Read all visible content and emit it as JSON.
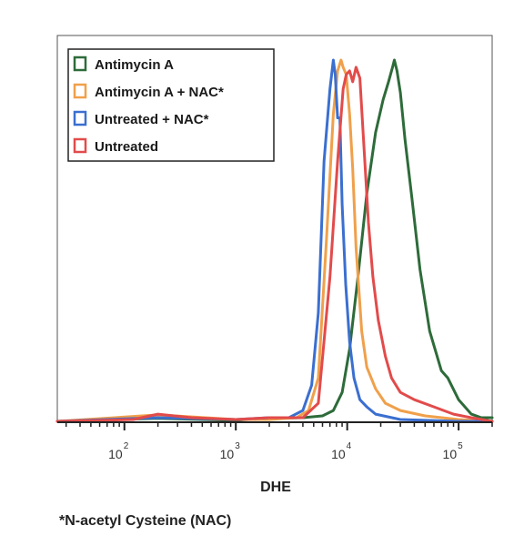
{
  "chart_data": {
    "type": "line",
    "title": "",
    "xlabel": "DHE",
    "ylabel": "",
    "x_scale": "log",
    "xlim": [
      25,
      200000
    ],
    "ylim": [
      0,
      100
    ],
    "x_ticks": [
      {
        "base": "10",
        "exp": "2",
        "value": 100
      },
      {
        "base": "10",
        "exp": "3",
        "value": 1000
      },
      {
        "base": "10",
        "exp": "4",
        "value": 10000
      },
      {
        "base": "10",
        "exp": "5",
        "value": 100000
      }
    ],
    "legend_position": "top-left",
    "footnote": "*N-acetyl Cysteine (NAC)",
    "series": [
      {
        "name": "Antimycin A",
        "color": "#2e6b3a",
        "x": [
          25,
          80,
          200,
          500,
          1000,
          2000,
          4000,
          6000,
          7500,
          9000,
          10500,
          12500,
          15000,
          18000,
          21000,
          23500,
          25500,
          26500,
          28000,
          30000,
          33000,
          38000,
          45000,
          55000,
          70000,
          80000,
          100000,
          130000,
          160000,
          200000
        ],
        "y": [
          0,
          0.5,
          0.8,
          0.5,
          0.3,
          0.8,
          1,
          1.5,
          3,
          8,
          20,
          40,
          63,
          80,
          89,
          94,
          98,
          100,
          97,
          91,
          78,
          62,
          42,
          25,
          14,
          12,
          6,
          2,
          1,
          1
        ]
      },
      {
        "name": "Antimycin A + NAC*",
        "color": "#f0a04b",
        "x": [
          25,
          200,
          1000,
          2000,
          3500,
          4500,
          5500,
          6500,
          7500,
          8200,
          8800,
          9200,
          9800,
          10500,
          11200,
          12000,
          13500,
          15000,
          18000,
          22000,
          30000,
          50000,
          100000,
          200000
        ],
        "y": [
          0,
          1.8,
          0.5,
          0.5,
          1,
          3,
          12,
          50,
          85,
          97,
          100,
          98,
          96,
          85,
          70,
          48,
          25,
          15,
          9,
          5,
          3,
          1.5,
          0.5,
          0
        ]
      },
      {
        "name": "Untreated + NAC*",
        "color": "#3b6fd0",
        "x": [
          25,
          200,
          1000,
          2000,
          3000,
          4000,
          4800,
          5500,
          6200,
          7000,
          7500,
          7800,
          8200,
          8600,
          9000,
          9700,
          10500,
          11500,
          13000,
          15000,
          18000,
          30000,
          100000,
          200000
        ],
        "y": [
          0,
          1,
          0.5,
          1,
          1,
          3,
          10,
          30,
          72,
          92,
          100,
          96,
          84,
          84,
          60,
          38,
          22,
          12,
          6,
          4,
          2,
          0.5,
          0,
          0
        ]
      },
      {
        "name": "Untreated",
        "color": "#e24b4b",
        "x": [
          25,
          120,
          200,
          400,
          1000,
          2000,
          4000,
          5500,
          7000,
          8200,
          9200,
          9800,
          10500,
          11200,
          12000,
          13000,
          14000,
          15500,
          17000,
          19000,
          22000,
          25000,
          30000,
          40000,
          60000,
          90000,
          130000,
          200000
        ],
        "y": [
          0,
          0.5,
          2,
          1,
          0.5,
          1,
          1,
          5,
          40,
          72,
          92,
          96,
          97,
          94,
          98,
          95,
          78,
          55,
          40,
          28,
          18,
          12,
          8,
          6,
          4,
          2,
          1,
          0
        ]
      }
    ]
  }
}
